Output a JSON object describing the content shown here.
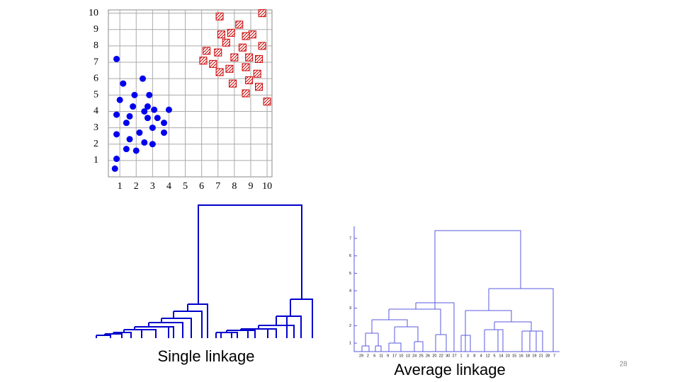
{
  "chart_data": {
    "type": "scatter",
    "xlim": [
      0.3,
      10.3
    ],
    "ylim": [
      0,
      10.2
    ],
    "xticks": [
      1,
      2,
      3,
      4,
      5,
      6,
      7,
      8,
      9,
      10
    ],
    "yticks": [
      1,
      2,
      3,
      4,
      5,
      6,
      7,
      8,
      9,
      10
    ],
    "grid": true,
    "series": [
      {
        "color": "#0000ee",
        "marker": "circle",
        "x": [
          0.8,
          1.2,
          2.4,
          1.0,
          1.9,
          2.8,
          0.8,
          1.6,
          1.8,
          2.5,
          2.7,
          3.1,
          4.0,
          1.4,
          2.7,
          3.3,
          3.7,
          0.8,
          1.6,
          2.2,
          3.0,
          3.7,
          2.5,
          3.0,
          1.4,
          2.0,
          0.8,
          0.7
        ],
        "values": [
          7.2,
          5.7,
          6.0,
          4.7,
          5.0,
          5.0,
          3.8,
          3.7,
          4.3,
          4.0,
          4.3,
          4.1,
          4.1,
          3.3,
          3.6,
          3.6,
          3.3,
          2.6,
          2.3,
          2.7,
          3.0,
          2.7,
          2.1,
          2.0,
          1.7,
          1.6,
          1.1,
          0.5
        ]
      },
      {
        "color": "#cc0000",
        "marker": "hatched-square",
        "x": [
          7.1,
          9.7,
          8.3,
          7.8,
          9.1,
          7.2,
          8.7,
          7.5,
          6.3,
          8.5,
          9.7,
          7.0,
          8.0,
          8.9,
          9.5,
          6.1,
          6.7,
          8.7,
          7.7,
          7.1,
          9.4,
          8.9,
          7.9,
          9.5,
          8.7,
          10.0
        ],
        "values": [
          9.8,
          10.0,
          9.3,
          8.8,
          8.7,
          8.7,
          8.6,
          8.2,
          7.7,
          7.9,
          8.0,
          7.6,
          7.3,
          7.3,
          7.2,
          7.1,
          6.9,
          6.7,
          6.6,
          6.4,
          6.3,
          5.9,
          5.7,
          5.5,
          5.1,
          4.6
        ]
      }
    ]
  },
  "single_linkage": {
    "caption": "Single linkage"
  },
  "average_linkage": {
    "caption": "Average linkage",
    "yticks": [
      1,
      2,
      3,
      4,
      5,
      6,
      7
    ],
    "leaves": [
      29,
      2,
      6,
      11,
      9,
      17,
      10,
      13,
      24,
      25,
      26,
      20,
      22,
      30,
      27,
      1,
      3,
      8,
      4,
      12,
      5,
      14,
      23,
      15,
      16,
      18,
      19,
      21,
      28,
      7
    ]
  },
  "page_number": "28"
}
